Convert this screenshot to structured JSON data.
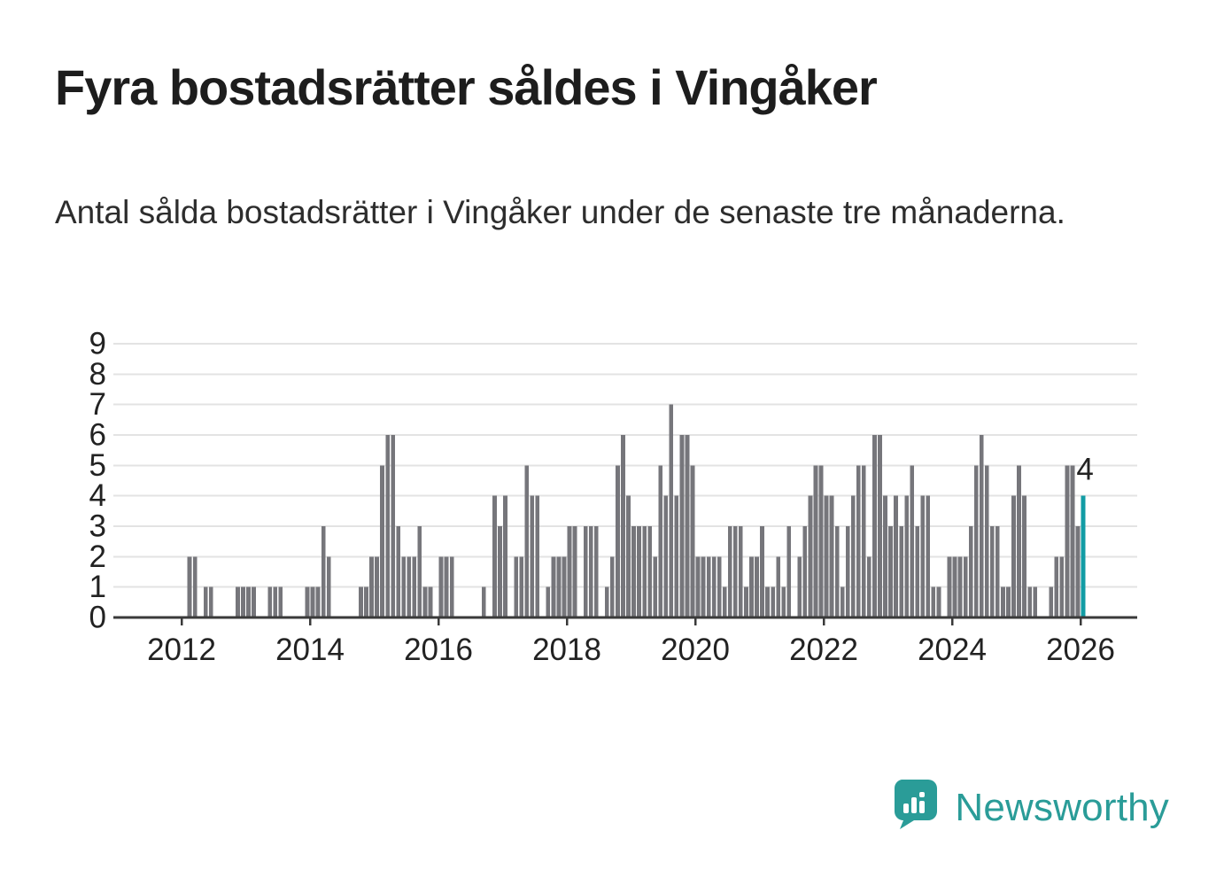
{
  "title": "Fyra bostadsrätter såldes i Vingåker",
  "subtitle": "Antal sålda bostadsrätter i Vingåker under de senaste tre månaderna.",
  "colors": {
    "bar": "#76767b",
    "highlight": "#129ca4",
    "axis": "#3a3a3a",
    "grid": "#e3e3e3",
    "tick_text": "#222222",
    "brand": "#2a9c98"
  },
  "chart_data": {
    "type": "bar",
    "title": "Antal sålda bostadsrätter i Vingåker, rullande tre månader",
    "xlabel": "",
    "ylabel": "",
    "x_start": "2011-01",
    "x_frequency": "monthly",
    "ylim": [
      0,
      9
    ],
    "yticks": [
      0,
      1,
      2,
      3,
      4,
      5,
      6,
      7,
      8,
      9
    ],
    "xticks": [
      "2012",
      "2014",
      "2016",
      "2018",
      "2020",
      "2022",
      "2024",
      "2026"
    ],
    "grid": true,
    "legend": "none",
    "highlight_last": true,
    "last_label": "4",
    "values": [
      0,
      0,
      0,
      0,
      0,
      0,
      0,
      0,
      0,
      0,
      0,
      0,
      0,
      2,
      2,
      0,
      1,
      1,
      0,
      0,
      0,
      0,
      1,
      1,
      1,
      1,
      0,
      0,
      1,
      1,
      1,
      0,
      0,
      0,
      0,
      1,
      1,
      1,
      3,
      2,
      0,
      0,
      0,
      0,
      0,
      1,
      1,
      2,
      2,
      5,
      6,
      6,
      3,
      2,
      2,
      2,
      3,
      1,
      1,
      0,
      2,
      2,
      2,
      0,
      0,
      0,
      0,
      0,
      1,
      0,
      4,
      3,
      4,
      0,
      2,
      2,
      5,
      4,
      4,
      0,
      1,
      2,
      2,
      2,
      3,
      3,
      0,
      3,
      3,
      3,
      0,
      1,
      2,
      5,
      6,
      4,
      3,
      3,
      3,
      3,
      2,
      5,
      4,
      7,
      4,
      6,
      6,
      5,
      2,
      2,
      2,
      2,
      2,
      1,
      3,
      3,
      3,
      1,
      2,
      2,
      3,
      1,
      1,
      2,
      1,
      3,
      0,
      2,
      3,
      4,
      5,
      5,
      4,
      4,
      3,
      1,
      3,
      4,
      5,
      5,
      2,
      6,
      6,
      4,
      3,
      4,
      3,
      4,
      5,
      3,
      4,
      4,
      1,
      1,
      0,
      2,
      2,
      2,
      2,
      3,
      5,
      6,
      5,
      3,
      3,
      1,
      1,
      4,
      5,
      4,
      1,
      1,
      0,
      0,
      1,
      2,
      2,
      5,
      5,
      3,
      4
    ]
  },
  "logo": {
    "text": "Newsworthy"
  }
}
